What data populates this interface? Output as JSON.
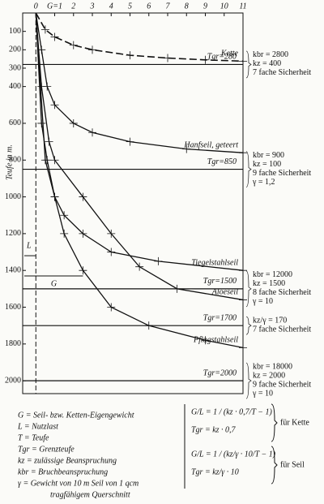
{
  "chart_data": {
    "type": "line",
    "ylabel": "Teufe in m.",
    "xlim": [
      -0.7,
      11
    ],
    "xticks": [
      0,
      {
        "value": 1,
        "label": "G=1"
      },
      2,
      3,
      4,
      5,
      6,
      7,
      8,
      9,
      10,
      11
    ],
    "ylim": [
      0,
      2070
    ],
    "yticks": [
      100,
      200,
      300,
      400,
      600,
      800,
      1000,
      1200,
      1400,
      1600,
      1800,
      2000
    ],
    "inverted_y": true,
    "x_axis_top": true,
    "markers": true,
    "annotations": [
      "L",
      "G"
    ],
    "series": [
      {
        "name": "Kette",
        "color": "#111111",
        "dashed": true,
        "x": [
          0,
          0.5,
          1,
          2,
          3,
          5,
          7,
          9,
          11
        ],
        "values": [
          0,
          90,
          130,
          175,
          200,
          230,
          245,
          255,
          262
        ]
      },
      {
        "name": "Hanfseil, geteert",
        "color": "#111111",
        "dashed": false,
        "x": [
          0,
          0.3,
          0.6,
          1,
          2,
          3,
          5,
          8,
          11
        ],
        "values": [
          0,
          200,
          400,
          500,
          600,
          650,
          700,
          740,
          760
        ]
      },
      {
        "name": "Tiegelstahlseil",
        "color": "#111111",
        "dashed": false,
        "x": [
          0,
          0.3,
          0.6,
          1,
          1.5,
          2.5,
          4,
          6.5,
          11
        ],
        "values": [
          0,
          600,
          800,
          1000,
          1100,
          1200,
          1300,
          1350,
          1400
        ]
      },
      {
        "name": "Aloëseil",
        "color": "#111111",
        "dashed": false,
        "x": [
          0,
          0.3,
          0.7,
          1,
          2.5,
          4,
          5.5,
          7.5,
          11
        ],
        "values": [
          0,
          400,
          700,
          800,
          1000,
          1200,
          1380,
          1500,
          1560
        ]
      },
      {
        "name": "Pflugstahlseil",
        "color": "#111111",
        "dashed": false,
        "x": [
          0,
          0.5,
          1,
          1.5,
          2.5,
          4,
          6,
          9,
          11
        ],
        "values": [
          0,
          800,
          1000,
          1200,
          1400,
          1600,
          1700,
          1780,
          1820
        ]
      }
    ],
    "reference_lines": [
      {
        "value": 280,
        "label": "Tgr=280",
        "note": [
          "kbr = 2800",
          "kz = 400",
          "7 fache Sicherheit"
        ]
      },
      {
        "value": 850,
        "label": "Tgr=850",
        "note": [
          "kbr = 900",
          "kz = 100",
          "9 fache Sicherheit",
          "γ = 1,2"
        ]
      },
      {
        "value": 1500,
        "label": "Tgr=1500",
        "note": [
          "kbr = 12000",
          "kz = 1500",
          "8 fache Sicherheit",
          "γ = 10"
        ]
      },
      {
        "value": 1700,
        "label": "Tgr=1700",
        "note": [
          "kz/γ = 170",
          "7 fache Sicherheit"
        ]
      },
      {
        "value": 2000,
        "label": "Tgr=2000",
        "note": [
          "kbr = 18000",
          "kz = 2000",
          "9 fache Sicherheit",
          "γ = 10"
        ]
      }
    ]
  },
  "legend_notes": [
    "G = Seil- bzw. Ketten-Eigengewicht",
    "L = Nutzlast",
    "T = Teufe",
    "Tgr = Grenzteufe",
    "kz = zulässige Beanspruchung",
    "kbr = Bruchbeanspruchung",
    "γ = Gewicht von 10 m Seil von 1 qcm",
    "tragfähigem Querschnitt"
  ],
  "formulas": [
    {
      "lines": [
        "G/L = 1 / (kz · 0,7/T − 1)",
        "Tgr = kz · 0,7"
      ],
      "label": "für Kette"
    },
    {
      "lines": [
        "G/L = 1 / (kz/γ · 10/T − 1)",
        "Tgr = kz/γ · 10"
      ],
      "label": "für Seil"
    }
  ]
}
